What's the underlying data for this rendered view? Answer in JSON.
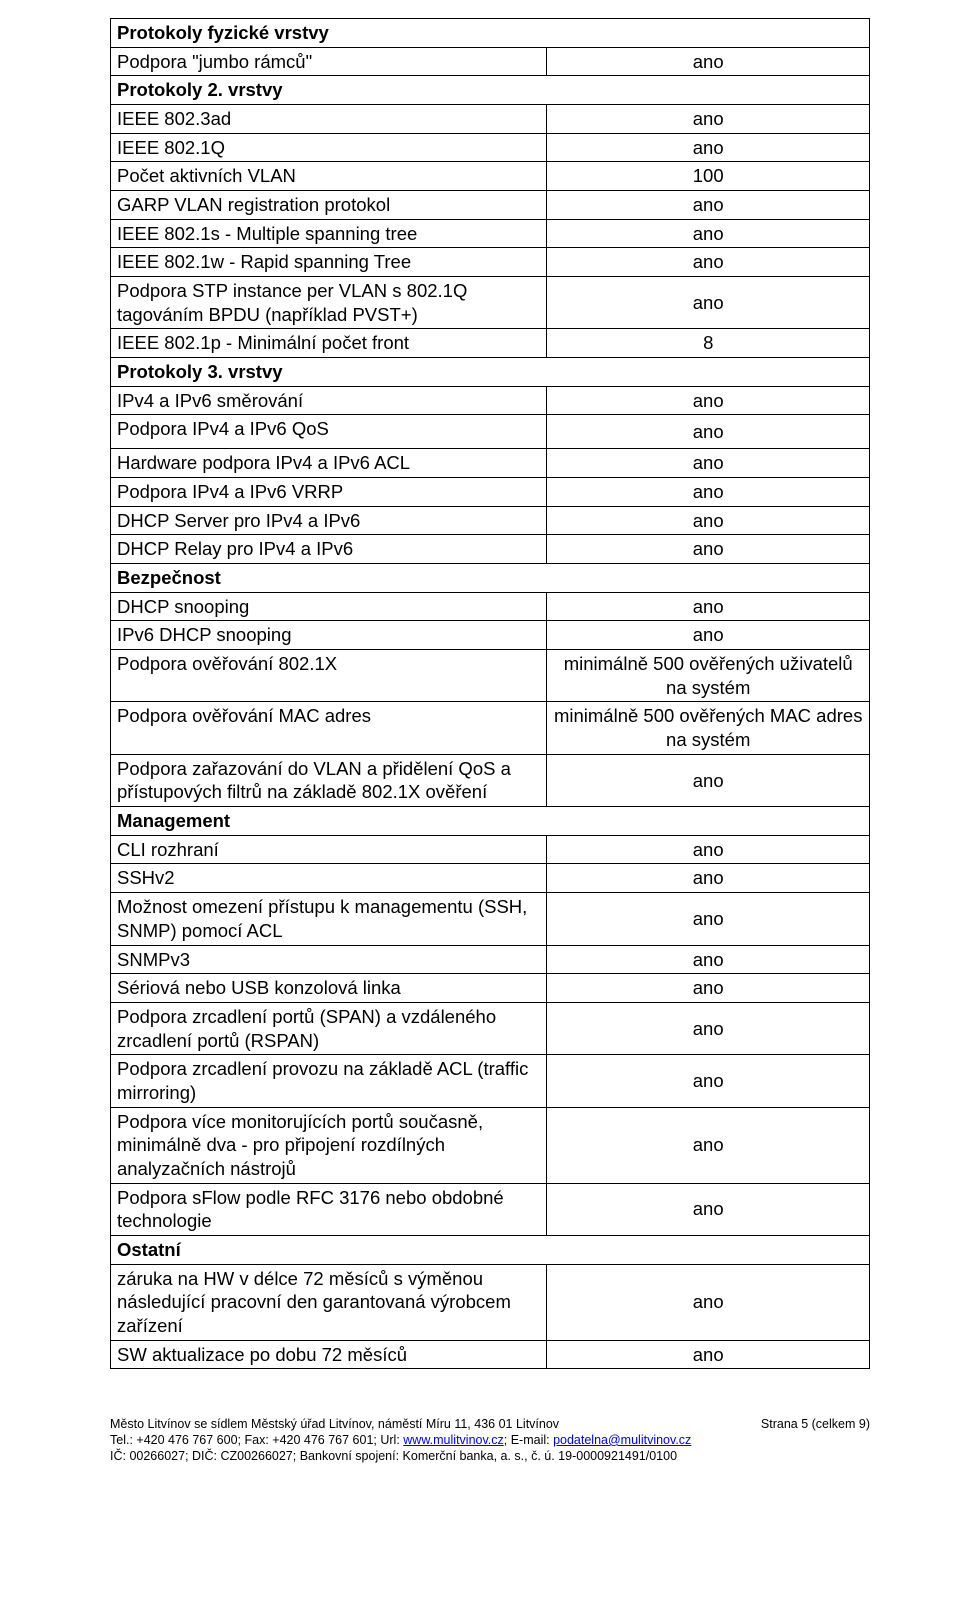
{
  "rows": [
    {
      "type": "header",
      "label": "Protokoly fyzické vrstvy"
    },
    {
      "type": "data",
      "label": "Podpora \"jumbo rámců\"",
      "value": "ano"
    },
    {
      "type": "header",
      "label": "Protokoly 2. vrstvy"
    },
    {
      "type": "data",
      "label": "IEEE 802.3ad",
      "value": "ano"
    },
    {
      "type": "data",
      "label": "IEEE 802.1Q",
      "value": "ano"
    },
    {
      "type": "data",
      "label": "Počet aktivních VLAN",
      "value": "100"
    },
    {
      "type": "data",
      "label": "GARP VLAN registration protokol",
      "value": "ano"
    },
    {
      "type": "data",
      "label": "IEEE 802.1s - Multiple spanning tree",
      "value": "ano"
    },
    {
      "type": "data",
      "label": "IEEE 802.1w - Rapid spanning Tree",
      "value": "ano"
    },
    {
      "type": "data",
      "label": "Podpora STP instance per VLAN s 802.1Q tagováním BPDU (například PVST+)",
      "value": "ano"
    },
    {
      "type": "data",
      "label": "IEEE 802.1p - Minimální počet front",
      "value": "8"
    },
    {
      "type": "header",
      "label": "Protokoly 3. vrstvy"
    },
    {
      "type": "data",
      "label": "IPv4 a IPv6 směrování",
      "value": "ano"
    },
    {
      "type": "data",
      "label": "Podpora IPv4 a IPv6 QoS",
      "value": "ano",
      "tall": true
    },
    {
      "type": "data",
      "label": "Hardware podpora IPv4 a IPv6 ACL",
      "value": "ano"
    },
    {
      "type": "data",
      "label": "Podpora IPv4 a IPv6 VRRP",
      "value": "ano"
    },
    {
      "type": "data",
      "label": "DHCP Server pro IPv4 a IPv6",
      "value": "ano"
    },
    {
      "type": "data",
      "label": "DHCP Relay pro IPv4 a IPv6",
      "value": "ano"
    },
    {
      "type": "header",
      "label": "Bezpečnost"
    },
    {
      "type": "data",
      "label": "DHCP snooping",
      "value": "ano"
    },
    {
      "type": "data",
      "label": "IPv6 DHCP snooping",
      "value": "ano"
    },
    {
      "type": "data",
      "label": "Podpora ověřování 802.1X",
      "value": "minimálně 500 ověřených uživatelů na systém"
    },
    {
      "type": "data",
      "label": "Podpora ověřování MAC adres",
      "value": "minimálně 500 ověřených MAC adres na systém"
    },
    {
      "type": "data",
      "label": "Podpora zařazování do VLAN a přidělení QoS a přístupových filtrů na základě 802.1X ověření",
      "value": "ano"
    },
    {
      "type": "header",
      "label": "Management"
    },
    {
      "type": "data",
      "label": "CLI rozhraní",
      "value": "ano"
    },
    {
      "type": "data",
      "label": "SSHv2",
      "value": "ano"
    },
    {
      "type": "data",
      "label": "Možnost omezení přístupu k managementu (SSH, SNMP) pomocí ACL",
      "value": "ano"
    },
    {
      "type": "data",
      "label": "SNMPv3",
      "value": "ano"
    },
    {
      "type": "data",
      "label": "Sériová nebo USB konzolová linka",
      "value": "ano"
    },
    {
      "type": "data",
      "label": "Podpora zrcadlení portů (SPAN) a vzdáleného zrcadlení portů (RSPAN)",
      "value": "ano"
    },
    {
      "type": "data",
      "label": "Podpora zrcadlení provozu na základě ACL (traffic mirroring)",
      "value": "ano"
    },
    {
      "type": "data",
      "label": "Podpora více monitorujících portů současně, minimálně dva -  pro připojení rozdílných analyzačních nástrojů",
      "value": "ano"
    },
    {
      "type": "data",
      "label": "Podpora sFlow podle RFC 3176 nebo obdobné technologie",
      "value": "ano"
    },
    {
      "type": "header",
      "label": "Ostatní"
    },
    {
      "type": "data",
      "label": "záruka na HW v délce 72 měsíců s výměnou následující pracovní den garantovaná výrobcem zařízení",
      "value": "ano"
    },
    {
      "type": "data",
      "label": "SW aktualizace po dobu 72 měsíců",
      "value": "ano"
    }
  ],
  "footer": {
    "line1": "Město Litvínov se sídlem Městský úřad Litvínov, náměstí Míru 11, 436 01 Litvínov",
    "pageinfo": "Strana 5 (celkem 9)",
    "tel_label": "Tel.: +420 476 767 600; Fax: +420 476 767 601; Url: ",
    "url": "www.mulitvinov.cz",
    "email_label": "; E-mail: ",
    "email": "podatelna@mulitvinov.cz",
    "line3": "IČ: 00266027; DIČ: CZ00266027; Bankovní spojení: Komerční banka, a. s., č. ú. 19-0000921491/0100"
  }
}
